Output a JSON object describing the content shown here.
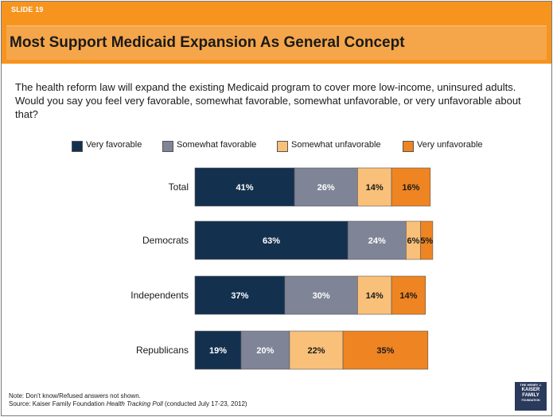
{
  "slide": {
    "number_label": "SLIDE 19",
    "title": "Most Support Medicaid Expansion As General Concept",
    "question": "The health reform law will expand the existing Medicaid program to cover more low-income, uninsured adults. Would you say you feel very favorable, somewhat favorable, somewhat unfavorable, or very unfavorable about that?",
    "note": "Note: Don’t know/Refused answers not shown.",
    "source_prefix": "Source: Kaiser Family Foundation ",
    "source_italic": "Health Tracking Poll",
    "source_suffix": " (conducted July 17-23, 2012)",
    "logo_lines": [
      "THE HENRY J.",
      "KAISER",
      "FAMILY",
      "FOUNDATION"
    ]
  },
  "colors": {
    "accent": "#f7941d",
    "title_box": "#f5a64a",
    "very_favorable": "#14304f",
    "somewhat_favorable": "#7f8496",
    "somewhat_unfavorable": "#f9c07a",
    "very_unfavorable": "#ee8422"
  },
  "chart_data": {
    "type": "bar",
    "orientation": "horizontal",
    "stacked": true,
    "categories": [
      "Total",
      "Democrats",
      "Independents",
      "Republicans"
    ],
    "series": [
      {
        "name": "Very favorable",
        "values": [
          41,
          63,
          37,
          19
        ],
        "color": "#14304f"
      },
      {
        "name": "Somewhat favorable",
        "values": [
          26,
          24,
          30,
          20
        ],
        "color": "#7f8496"
      },
      {
        "name": "Somewhat unfavorable",
        "values": [
          14,
          6,
          14,
          22
        ],
        "color": "#f9c07a"
      },
      {
        "name": "Very unfavorable",
        "values": [
          16,
          5,
          14,
          35
        ],
        "color": "#ee8422"
      }
    ],
    "value_suffix": "%",
    "legend_position": "top",
    "grid": false
  }
}
